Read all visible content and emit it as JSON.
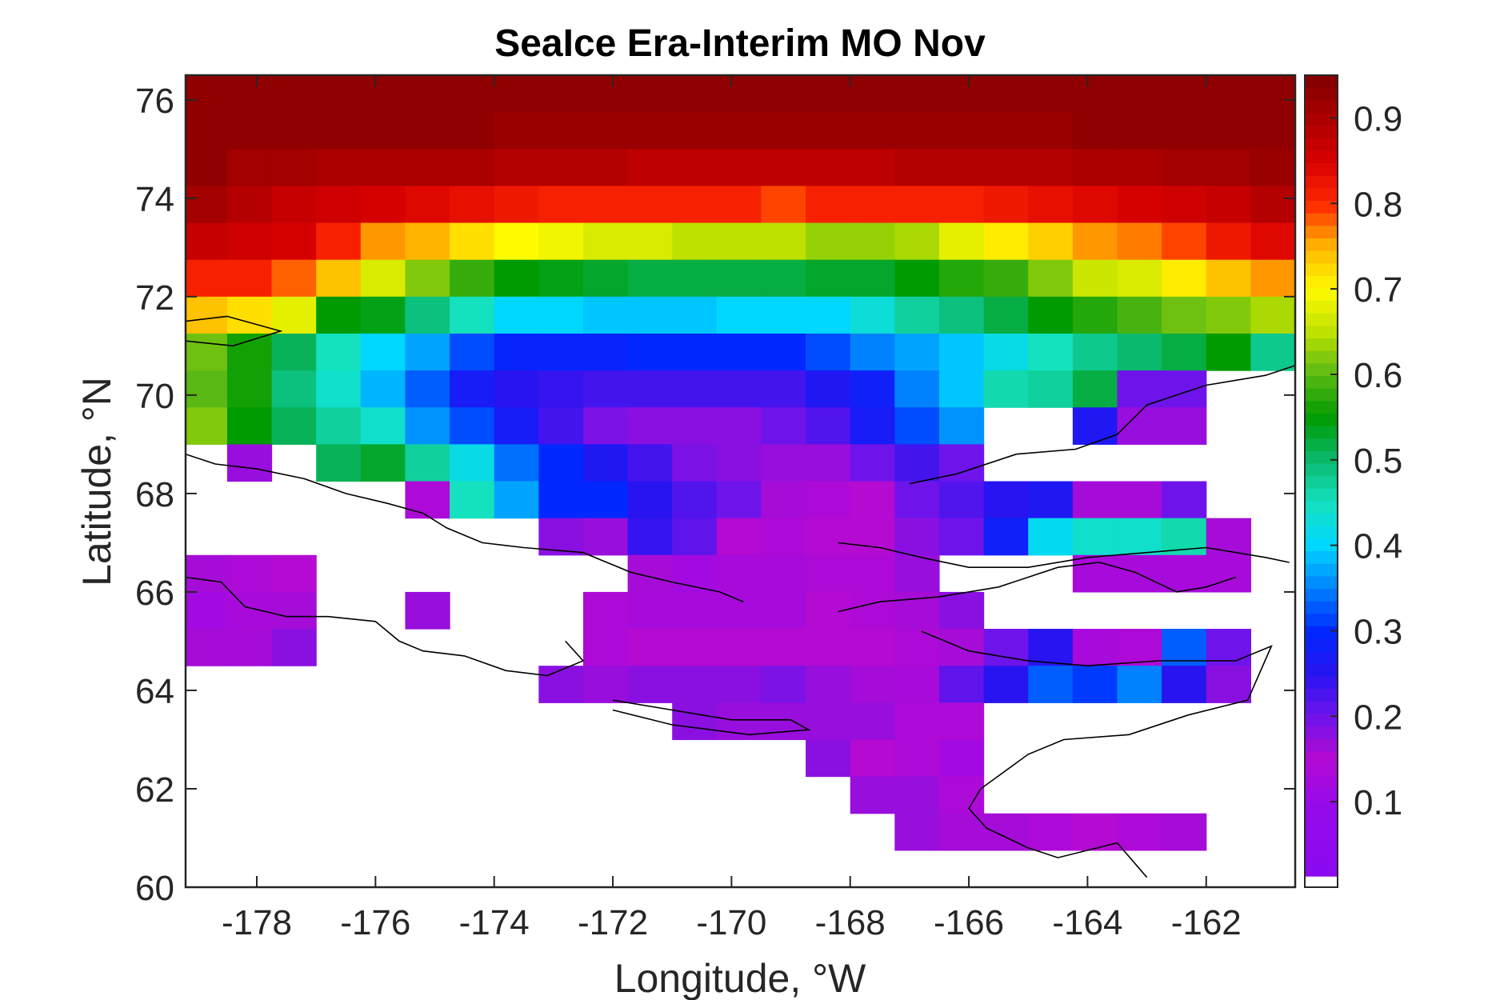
{
  "chart_data": {
    "type": "heatmap",
    "title": "SeaIce Era-Interim MO Nov",
    "xlabel": "Longitude, °W",
    "ylabel": "Latitude, °N",
    "xlim": [
      -179.2,
      -160.5
    ],
    "ylim": [
      60,
      76.5
    ],
    "xticks": [
      -178,
      -176,
      -174,
      -172,
      -170,
      -168,
      -166,
      -164,
      -162
    ],
    "yticks": [
      60,
      62,
      64,
      66,
      68,
      70,
      72,
      74,
      76
    ],
    "colorbar": {
      "range": [
        0.0,
        0.95
      ],
      "ticks": [
        0.1,
        0.2,
        0.3,
        0.4,
        0.5,
        0.6,
        0.7,
        0.8,
        0.9
      ],
      "colormap": "jet-like (purple-blue-cyan-green-yellow-red-darkred)"
    },
    "grid": {
      "lon_start": -179.25,
      "lon_step": 0.75,
      "lat_top": 76.5,
      "lat_step": -0.75,
      "rows": [
        "0.93 0.93 0.93 0.93 0.93 0.93 0.93 0.93 0.93 0.93 0.93 0.93 0.93 0.93 0.93 0.93 0.93 0.93 0.93 0.93 0.93 0.93 0.93 0.93 0.93",
        "0.93 0.93 0.93 0.93 0.93 0.93 0.93 0.92 0.92 0.92 0.92 0.92 0.92 0.92 0.92 0.92 0.92 0.92 0.92 0.92 0.93 0.93 0.93 0.93 0.93",
        "0.93 0.91 0.91 0.90 0.90 0.90 0.90 0.89 0.89 0.89 0.88 0.88 0.88 0.88 0.88 0.88 0.89 0.89 0.89 0.89 0.90 0.90 0.91 0.91 0.92",
        "0.91 0.89 0.87 0.86 0.85 0.84 0.83 0.82 0.81 0.81 0.81 0.81 0.81 0.79 0.81 0.81 0.81 0.81 0.82 0.83 0.84 0.85 0.86 0.87 0.89",
        "0.87 0.86 0.85 0.81 0.76 0.75 0.72 0.70 0.69 0.67 0.67 0.65 0.65 0.65 0.63 0.63 0.64 0.68 0.71 0.73 0.76 0.77 0.79 0.82 0.84",
        "0.81 0.81 0.78 0.74 0.67 0.62 0.58 0.55 0.54 0.53 0.52 0.52 0.52 0.52 0.53 0.53 0.55 0.57 0.58 0.62 0.66 0.67 0.71 0.74 0.76",
        "0.74 0.72 0.68 0.55 0.54 0.49 0.45 0.40 0.40 0.39 0.39 0.39 0.40 0.40 0.40 0.43 0.47 0.49 0.52 0.55 0.57 0.59 0.61 0.62 0.64",
        "0.61 0.56 0.51 0.45 0.40 0.37 0.32 0.29 0.29 0.29 0.30 0.30 0.30 0.30 0.32 0.35 0.37 0.39 0.42 0.45 0.48 0.50 0.52 0.55 0.48",
        "0.60 0.56 0.49 0.44 0.38 0.33 0.27 0.25 0.24 0.23 0.23 0.23 0.23 0.23 0.26 0.28 0.35 0.39 0.46 0.47 0.52 0.20 0.20 null null",
        "0.62 0.55 0.51 0.47 0.44 0.36 0.32 0.27 0.23 0.19 0.18 0.18 0.18 0.20 0.22 0.27 0.32 0.36 null null 0.26 0.17 0.17 null null",
        "null 0.17 null 0.51 0.53 0.47 0.42 0.34 0.30 0.26 0.23 0.19 0.18 0.17 0.17 0.20 0.23 0.20 null null null null null null null",
        "null null null null null 0.14 0.45 0.37 0.30 0.30 0.25 0.22 0.20 0.16 0.14 0.15 0.20 0.22 0.25 0.26 0.16 0.16 0.20 null null",
        "null null null null null null null null 0.18 0.17 0.24 0.21 0.15 0.14 0.15 0.15 0.18 0.20 0.28 0.41 0.44 0.44 0.46 0.16 null",
        "0.16 0.14 0.15 null null null null null null null 0.16 0.12 0.13 0.13 0.14 0.14 0.17 null null null 0.13 0.13 0.13 0.13 null",
        "0.12 0.13 0.16 null null 0.17 null null null 0.14 0.13 0.13 0.13 0.13 0.15 0.14 0.16 0.18 null null null null null null null",
        "0.16 0.16 0.18 null null null null null null 0.14 0.15 0.15 0.15 0.15 0.15 0.15 0.14 0.16 0.20 0.25 0.13 0.14 0.33 0.20 null",
        "null null null null null null null null 0.18 0.17 0.18 0.18 0.18 0.19 0.17 0.16 0.13 0.21 0.25 0.33 0.31 0.35 0.25 0.18 null",
        "null null null null null null null null null null null 0.18 0.17 0.17 0.17 0.17 0.14 0.14 null null null null null null null",
        "null null null null null null null null null null null null null null 0.18 0.15 0.14 0.12 null null null null null null null",
        "null null null null null null null null null null null null null null null 0.17 0.17 0.14 null null null null null null null",
        "null null null null null null null null null null null null null null null null 0.17 0.16 0.16 0.14 0.15 0.14 0.16 null null"
      ]
    }
  }
}
